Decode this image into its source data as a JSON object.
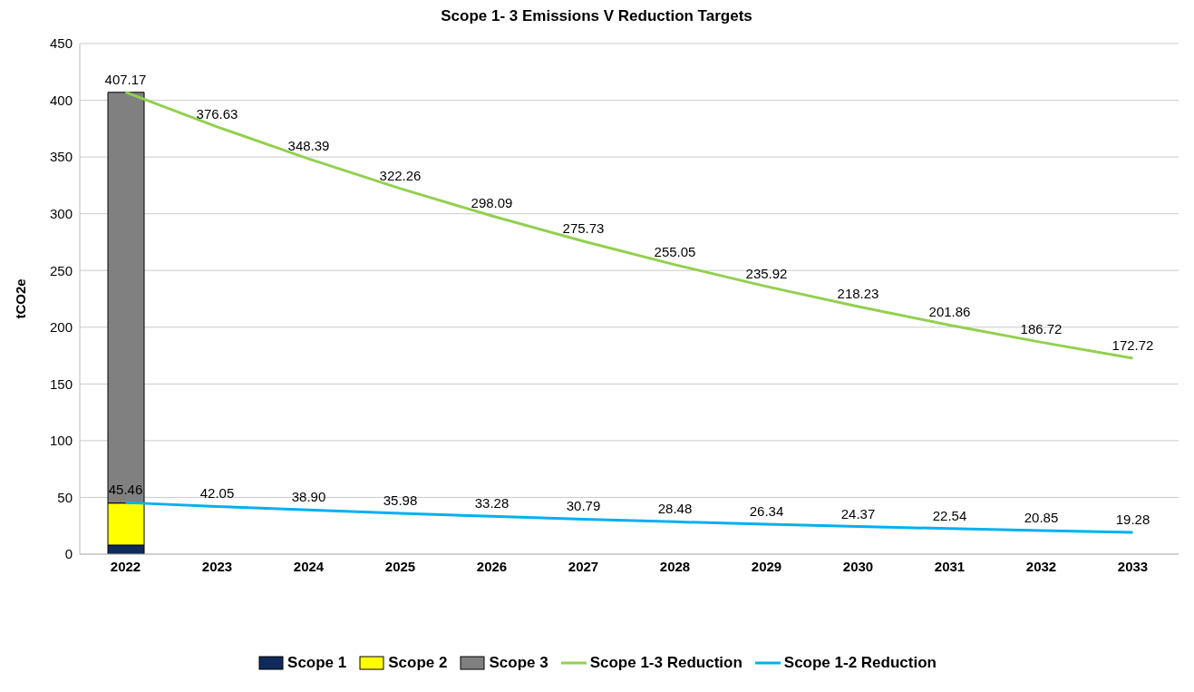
{
  "chart_data": {
    "type": "bar",
    "title": "Scope 1- 3 Emissions V Reduction Targets",
    "ylabel": "tCO2e",
    "categories": [
      "2022",
      "2023",
      "2024",
      "2025",
      "2026",
      "2027",
      "2028",
      "2029",
      "2030",
      "2031",
      "2032",
      "2033"
    ],
    "stacked": true,
    "ylim": [
      0,
      450
    ],
    "yticks": [
      0,
      50,
      100,
      150,
      200,
      250,
      300,
      350,
      400,
      450
    ],
    "grid": "y",
    "legend": "bottom",
    "series": [
      {
        "name": "Scope 1",
        "color": "#0f2a5c",
        "values": [
          8,
          null,
          null,
          null,
          null,
          null,
          null,
          null,
          null,
          null,
          null,
          null
        ]
      },
      {
        "name": "Scope 2",
        "color": "#ffff00",
        "values": [
          37,
          null,
          null,
          null,
          null,
          null,
          null,
          null,
          null,
          null,
          null,
          null
        ]
      },
      {
        "name": "Scope 3",
        "color": "#808080",
        "values": [
          362,
          null,
          null,
          null,
          null,
          null,
          null,
          null,
          null,
          null,
          null,
          null
        ]
      },
      {
        "name": "Scope 1-3 Reduction",
        "type": "line",
        "color": "#92d050",
        "values": [
          407.17,
          376.63,
          348.39,
          322.26,
          298.09,
          275.73,
          255.05,
          235.92,
          218.23,
          201.86,
          186.72,
          172.72
        ],
        "value_labels": [
          "407.17",
          "376.63",
          "348.39",
          "322.26",
          "298.09",
          "275.73",
          "255.05",
          "235.92",
          "218.23",
          "201.86",
          "186.72",
          "172.72"
        ]
      },
      {
        "name": "Scope 1-2 Reduction",
        "type": "line",
        "color": "#00b0f0",
        "values": [
          45.46,
          42.05,
          38.9,
          35.98,
          33.28,
          30.79,
          28.48,
          26.34,
          24.37,
          22.54,
          20.85,
          19.28
        ],
        "value_labels": [
          "45.46",
          "42.05",
          "38.90",
          "35.98",
          "33.28",
          "30.79",
          "28.48",
          "26.34",
          "24.37",
          "22.54",
          "20.85",
          "19.28"
        ]
      }
    ]
  }
}
